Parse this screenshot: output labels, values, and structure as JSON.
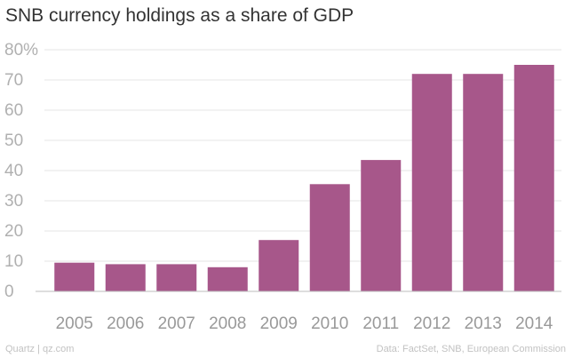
{
  "chart_data": {
    "type": "bar",
    "title": "SNB currency holdings as a share of GDP",
    "categories": [
      "2005",
      "2006",
      "2007",
      "2008",
      "2009",
      "2010",
      "2011",
      "2012",
      "2013",
      "2014"
    ],
    "values": [
      9.5,
      9,
      9,
      8,
      17,
      35.5,
      43.5,
      72,
      72,
      75
    ],
    "ylim": [
      0,
      80
    ],
    "yticks": [
      0,
      10,
      20,
      30,
      40,
      50,
      60,
      70,
      80
    ],
    "ytick_labels": [
      "0",
      "10",
      "20",
      "30",
      "40",
      "50",
      "60",
      "70",
      "80%"
    ],
    "xlabel": "",
    "ylabel": "",
    "bar_color": "#a7578a",
    "grid": true
  },
  "footer": {
    "source_left": "Quartz | qz.com",
    "source_right": "Data: FactSet, SNB, European Commission"
  }
}
